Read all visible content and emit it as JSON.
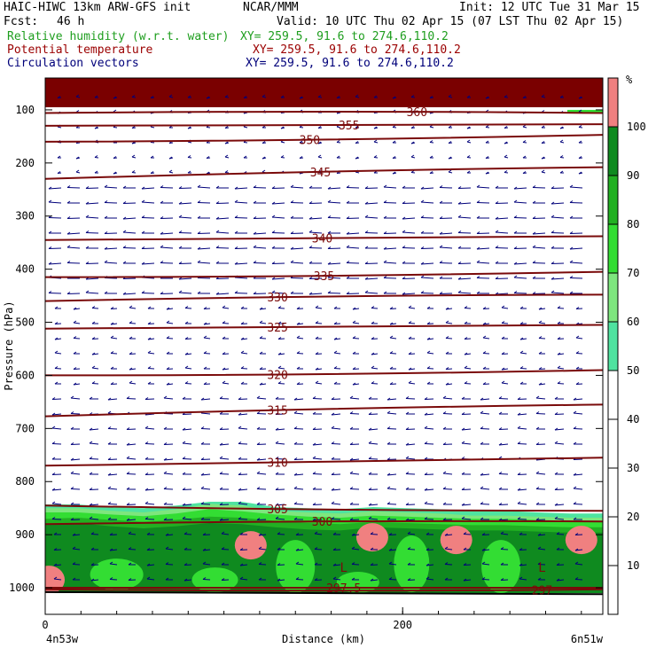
{
  "header": {
    "model": "HAIC-HIWC 13km ARW-GFS init",
    "org": "NCAR/MMM",
    "init": "Init: 12 UTC Tue 31 Mar 15",
    "fcst_label": "Fcst:",
    "fcst_value": "46 h",
    "valid": "Valid: 10 UTC Thu 02 Apr 15 (07 LST Thu 02 Apr 15)",
    "fields": [
      {
        "name": "Relative humidity (w.r.t. water)",
        "xy": "XY= 259.5, 91.6 to 274.6,110.2",
        "color": "#1e9e1e"
      },
      {
        "name": "Potential temperature",
        "xy": "XY= 259.5, 91.6 to 274.6,110.2",
        "color": "#9b0000"
      },
      {
        "name": "Circulation vectors",
        "xy": "XY= 259.5, 91.6 to 274.6,110.2",
        "color": "#00007a"
      }
    ]
  },
  "chart_data": {
    "type": "heatmap",
    "xlabel": "Distance (km)",
    "ylabel": "Pressure (hPa)",
    "x_ticks": [
      0,
      200
    ],
    "x_range": [
      0,
      312
    ],
    "x_end_labels": {
      "left": "4n53w",
      "right": "6n51w"
    },
    "y_ticks": [
      100,
      200,
      300,
      400,
      500,
      600,
      700,
      800,
      900,
      1000
    ],
    "y_range": [
      40,
      1050
    ],
    "colorbar": {
      "unit": "%",
      "ticks": [
        10,
        20,
        30,
        40,
        50,
        60,
        70,
        80,
        90,
        100
      ],
      "bands": [
        {
          "from": 50,
          "to": 60,
          "color": "#4fe3a0"
        },
        {
          "from": 60,
          "to": 70,
          "color": "#7ee67e"
        },
        {
          "from": 70,
          "to": 80,
          "color": "#33dd33"
        },
        {
          "from": 80,
          "to": 90,
          "color": "#22b022"
        },
        {
          "from": 90,
          "to": 100,
          "color": "#0f8a1f"
        },
        {
          "from": 100,
          "to": 110,
          "color": "#f08080"
        }
      ]
    },
    "theta_contours": [
      {
        "label": "360",
        "label_x": 208,
        "p_left": 106,
        "p_right": 106
      },
      {
        "label": "355",
        "label_x": 170,
        "p_left": 130,
        "p_right": 127
      },
      {
        "label": "350",
        "label_x": 148,
        "p_left": 160,
        "p_right": 147
      },
      {
        "label": "345",
        "label_x": 154,
        "p_left": 230,
        "p_right": 208
      },
      {
        "label": "340",
        "label_x": 155,
        "p_left": 345,
        "p_right": 338
      },
      {
        "label": "335",
        "label_x": 156,
        "p_left": 415,
        "p_right": 405
      },
      {
        "label": "330",
        "label_x": 130,
        "p_left": 460,
        "p_right": 448
      },
      {
        "label": "325",
        "label_x": 130,
        "p_left": 512,
        "p_right": 505
      },
      {
        "label": "320",
        "label_x": 130,
        "p_left": 600,
        "p_right": 590
      },
      {
        "label": "315",
        "label_x": 130,
        "p_left": 677,
        "p_right": 655
      },
      {
        "label": "310",
        "label_x": 130,
        "p_left": 770,
        "p_right": 755
      },
      {
        "label": "305",
        "label_x": 130,
        "p_left": 845,
        "p_right": 855
      },
      {
        "label": "300",
        "label_x": 155,
        "p_left": 880,
        "p_right": 875
      },
      {
        "label": "297.5",
        "label_x": 167,
        "p_left": 1000,
        "p_right": 1000
      },
      {
        "label": "297",
        "label_x": 278,
        "p_left": 1003,
        "p_right": 1003
      }
    ],
    "low_markers": [
      {
        "label": "L",
        "x": 167,
        "p": 970
      },
      {
        "label": "L",
        "x": 278,
        "p": 970
      }
    ],
    "rh_pockets_saturated": [
      {
        "x": 115,
        "p": 920
      },
      {
        "x": 183,
        "p": 905
      },
      {
        "x": 230,
        "p": 910
      },
      {
        "x": 300,
        "p": 910
      },
      {
        "x": 2,
        "p": 985
      }
    ],
    "vector_field": "easterly flow throughout column, stronger near 250-450 hPa and below 900 hPa"
  }
}
